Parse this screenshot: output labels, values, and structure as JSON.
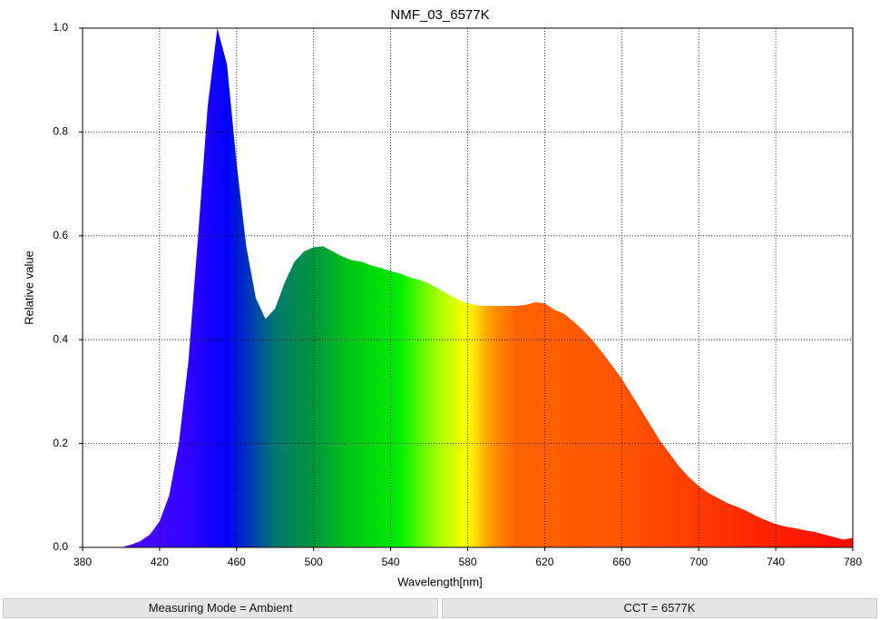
{
  "chart_data": {
    "type": "area",
    "title": "NMF_03_6577K",
    "x_label": "Wavelength[nm]",
    "y_label": "Relative value",
    "x": [
      400,
      405,
      410,
      415,
      420,
      425,
      430,
      435,
      440,
      445,
      450,
      455,
      460,
      465,
      470,
      475,
      480,
      485,
      490,
      495,
      500,
      505,
      510,
      515,
      520,
      525,
      530,
      535,
      540,
      545,
      550,
      555,
      560,
      565,
      570,
      575,
      580,
      585,
      590,
      595,
      600,
      605,
      610,
      615,
      620,
      625,
      630,
      635,
      640,
      645,
      650,
      655,
      660,
      665,
      670,
      675,
      680,
      685,
      690,
      695,
      700,
      705,
      710,
      715,
      720,
      725,
      730,
      735,
      740,
      745,
      750,
      755,
      760,
      765,
      770,
      775,
      780
    ],
    "values": [
      0.0,
      0.005,
      0.012,
      0.025,
      0.05,
      0.1,
      0.2,
      0.36,
      0.6,
      0.85,
      1.0,
      0.93,
      0.74,
      0.58,
      0.48,
      0.44,
      0.46,
      0.51,
      0.55,
      0.57,
      0.578,
      0.58,
      0.57,
      0.56,
      0.553,
      0.55,
      0.543,
      0.538,
      0.532,
      0.527,
      0.52,
      0.515,
      0.508,
      0.498,
      0.487,
      0.477,
      0.47,
      0.466,
      0.465,
      0.465,
      0.465,
      0.465,
      0.467,
      0.472,
      0.47,
      0.458,
      0.45,
      0.435,
      0.418,
      0.398,
      0.375,
      0.35,
      0.325,
      0.295,
      0.265,
      0.235,
      0.205,
      0.18,
      0.155,
      0.135,
      0.118,
      0.105,
      0.095,
      0.085,
      0.078,
      0.07,
      0.06,
      0.052,
      0.045,
      0.04,
      0.037,
      0.033,
      0.03,
      0.025,
      0.02,
      0.015,
      0.018
    ],
    "xlim": [
      380,
      780
    ],
    "xticks": [
      380,
      420,
      460,
      500,
      540,
      580,
      620,
      660,
      700,
      740,
      780
    ],
    "ylim": [
      0,
      1
    ],
    "yticks": [
      {
        "value": 0,
        "label": "0.0"
      },
      0.2,
      0.4,
      0.6,
      0.8,
      {
        "value": 1,
        "label": "1.0"
      }
    ],
    "grid": true
  },
  "status_bar": {
    "measuring_mode": "Measuring Mode = Ambient",
    "cct": "CCT = 6577K"
  }
}
